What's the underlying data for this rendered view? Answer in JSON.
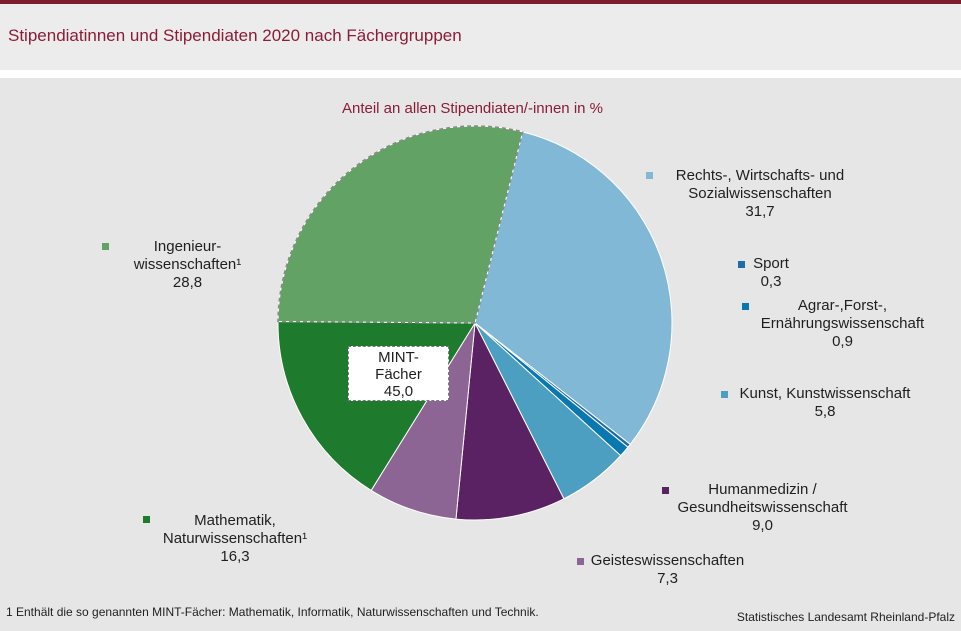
{
  "header": {
    "title": "Stipendiatinnen und Stipendiaten 2020 nach Fächergruppen"
  },
  "chart_data": {
    "type": "pie",
    "title": "Stipendiatinnen und Stipendiaten 2020 nach Fächergruppen",
    "subtitle": "Anteil an allen Stipendiaten/-innen in %",
    "unit": "%",
    "slices": [
      {
        "label": "Rechts-, Wirtschafts- und Sozialwissenschaften",
        "lines": [
          "Rechts-, Wirtschafts- und",
          "Sozialwissenschaften"
        ],
        "value": 31.7,
        "value_label": "31,7",
        "color": "#80b8d6"
      },
      {
        "label": "Sport",
        "lines": [
          "Sport"
        ],
        "value": 0.3,
        "value_label": "0,3",
        "color": "#1f6ca8"
      },
      {
        "label": "Agrar-,Forst-, Ernährungswissenschaft",
        "lines": [
          "Agrar-,Forst-,",
          "Ernährungswissenschaft"
        ],
        "value": 0.9,
        "value_label": "0,9",
        "color": "#0a78b0"
      },
      {
        "label": "Kunst, Kunstwissenschaft",
        "lines": [
          "Kunst, Kunstwissenschaft"
        ],
        "value": 5.8,
        "value_label": "5,8",
        "color": "#4d9fc2"
      },
      {
        "label": "Humanmedizin / Gesundheitswissenschaft",
        "lines": [
          "Humanmedizin /",
          "Gesundheitswissenschaft"
        ],
        "value": 9.0,
        "value_label": "9,0",
        "color": "#5a2262"
      },
      {
        "label": "Geisteswissenschaften",
        "lines": [
          "Geisteswissenschaften"
        ],
        "value": 7.3,
        "value_label": "7,3",
        "color": "#8d6594"
      },
      {
        "label": "Mathematik, Naturwissenschaften¹",
        "lines": [
          "Mathematik,",
          "Naturwissenschaften¹"
        ],
        "value": 16.3,
        "value_label": "16,3",
        "color": "#1e7a2c"
      },
      {
        "label": "Ingenieurwissenschaften¹",
        "lines": [
          "Ingenieur-",
          "wissenschaften¹"
        ],
        "value": 28.8,
        "value_label": "28,8",
        "color": "#62a265"
      }
    ],
    "group": {
      "lines": [
        "MINT-",
        "Fächer"
      ],
      "value": 45.0,
      "value_label": "45,0"
    }
  },
  "footer": {
    "footnote": "1 Enthält die so genannten MINT-Fächer:  Mathematik, Informatik, Naturwissenschaften und Technik.",
    "source": "Statistisches Landesamt Rheinland-Pfalz"
  }
}
